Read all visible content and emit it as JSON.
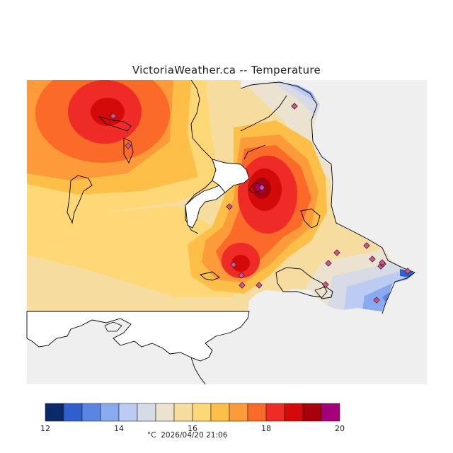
{
  "title": "VictoriaWeather.ca  --  Temperature",
  "timestamp_text": "°C  2026/04/20 21:06",
  "unit": "°C",
  "colorbar": {
    "min": 12,
    "max": 20,
    "step": 0.5,
    "tick_labels": [
      "12",
      "14",
      "16",
      "18",
      "20"
    ],
    "colors": [
      "#0b2a6a",
      "#2f5fcd",
      "#5a85e3",
      "#8aaaf0",
      "#bccbf2",
      "#d7dbe6",
      "#ebe3cf",
      "#f6dc9e",
      "#fed876",
      "#fdbf47",
      "#fd9a3a",
      "#fb6a28",
      "#ef2b27",
      "#d40a0a",
      "#a6000a",
      "#a3007a"
    ]
  },
  "colors": {
    "background": "#efefef",
    "land": "#ffffff",
    "coastline": "#000000",
    "station_marker": "#c45a8a"
  },
  "stations": [
    {
      "id": "st-1",
      "temp": 19.0
    },
    {
      "id": "st-2",
      "temp": 17.5
    },
    {
      "id": "st-3",
      "temp": 13.0
    },
    {
      "id": "st-4",
      "temp": 20.0
    },
    {
      "id": "st-5",
      "temp": 16.5
    },
    {
      "id": "st-6",
      "temp": 18.5
    },
    {
      "id": "st-7",
      "temp": 17.0
    },
    {
      "id": "st-8",
      "temp": 16.0
    },
    {
      "id": "st-9",
      "temp": 15.5
    },
    {
      "id": "st-10",
      "temp": 16.5
    },
    {
      "id": "st-11",
      "temp": 15.0
    },
    {
      "id": "st-12",
      "temp": 15.5
    },
    {
      "id": "st-13",
      "temp": 15.0
    },
    {
      "id": "st-14",
      "temp": 15.5
    },
    {
      "id": "st-15",
      "temp": 14.0
    },
    {
      "id": "st-16",
      "temp": 14.5
    },
    {
      "id": "st-17",
      "temp": 13.0
    },
    {
      "id": "st-18",
      "temp": 13.5
    },
    {
      "id": "st-19",
      "temp": 17.0
    }
  ]
}
